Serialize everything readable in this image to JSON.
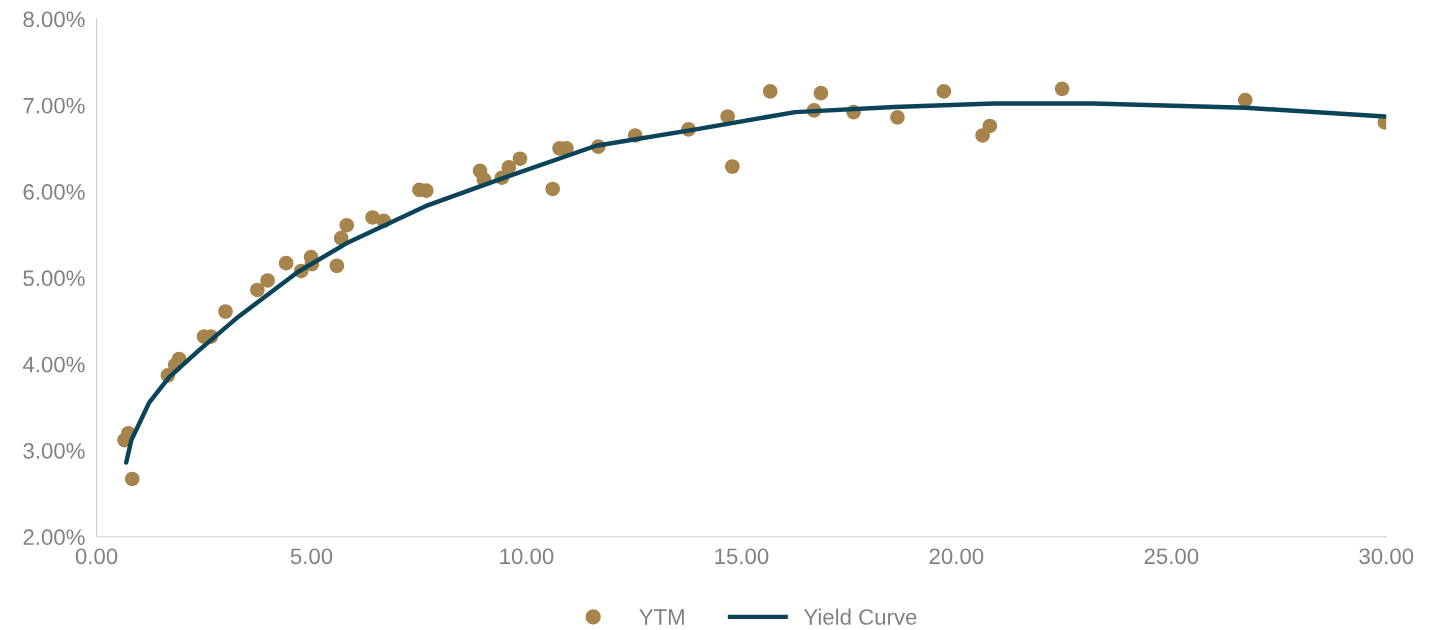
{
  "chart_data": {
    "type": "scatter",
    "legend": "bottom",
    "grid": false,
    "xlim": [
      0,
      30
    ],
    "ylim": [
      2,
      8
    ],
    "xticks": [
      {
        "value": 0,
        "label": "0.00"
      },
      {
        "value": 5,
        "label": "5.00"
      },
      {
        "value": 10,
        "label": "10.00"
      },
      {
        "value": 15,
        "label": "15.00"
      },
      {
        "value": 20,
        "label": "20.00"
      },
      {
        "value": 25,
        "label": "25.00"
      },
      {
        "value": 30,
        "label": "30.00"
      }
    ],
    "yticks": [
      {
        "value": 2,
        "label": "2.00%"
      },
      {
        "value": 3,
        "label": "3.00%"
      },
      {
        "value": 4,
        "label": "4.00%"
      },
      {
        "value": 5,
        "label": "5.00%"
      },
      {
        "value": 6,
        "label": "6.00%"
      },
      {
        "value": 7,
        "label": "7.00%"
      },
      {
        "value": 8,
        "label": "8.00%"
      }
    ],
    "series": [
      {
        "name": "YTM",
        "marker": "circle",
        "color": "#a6844b",
        "x": [
          0.65,
          0.74,
          0.83,
          1.66,
          1.83,
          1.92,
          2.5,
          2.66,
          3.0,
          3.74,
          3.98,
          4.41,
          4.76,
          4.99,
          5.01,
          5.59,
          5.69,
          5.82,
          6.42,
          6.68,
          7.51,
          7.67,
          8.92,
          9.01,
          9.43,
          9.59,
          9.85,
          10.61,
          10.77,
          10.93,
          11.67,
          12.53,
          13.77,
          14.68,
          14.79,
          15.67,
          16.69,
          16.85,
          17.61,
          18.63,
          19.71,
          20.61,
          20.78,
          22.46,
          26.72,
          29.97
        ],
        "values": [
          3.12,
          3.2,
          2.67,
          3.87,
          3.99,
          4.06,
          4.32,
          4.32,
          4.61,
          4.86,
          4.97,
          5.17,
          5.08,
          5.24,
          5.16,
          5.14,
          5.46,
          5.61,
          5.7,
          5.66,
          6.02,
          6.01,
          6.24,
          6.14,
          6.16,
          6.28,
          6.38,
          6.03,
          6.5,
          6.5,
          6.52,
          6.65,
          6.72,
          6.87,
          6.29,
          7.16,
          6.94,
          7.14,
          6.92,
          6.86,
          7.16,
          6.65,
          6.76,
          7.19,
          7.06,
          6.8
        ]
      },
      {
        "name": "Yield Curve",
        "type": "line",
        "color": "#0b4458",
        "marker": "none",
        "line_style": "solid",
        "x": [
          0.69,
          0.81,
          1.22,
          1.69,
          2.38,
          3.3,
          4.69,
          5.85,
          7.7,
          9.31,
          11.62,
          13.94,
          16.25,
          18.56,
          20.87,
          23.18,
          26.72,
          29.97
        ],
        "values": [
          2.86,
          3.12,
          3.55,
          3.85,
          4.16,
          4.55,
          5.07,
          5.41,
          5.84,
          6.13,
          6.53,
          6.72,
          6.92,
          6.98,
          7.02,
          7.02,
          6.97,
          6.87
        ]
      }
    ]
  }
}
